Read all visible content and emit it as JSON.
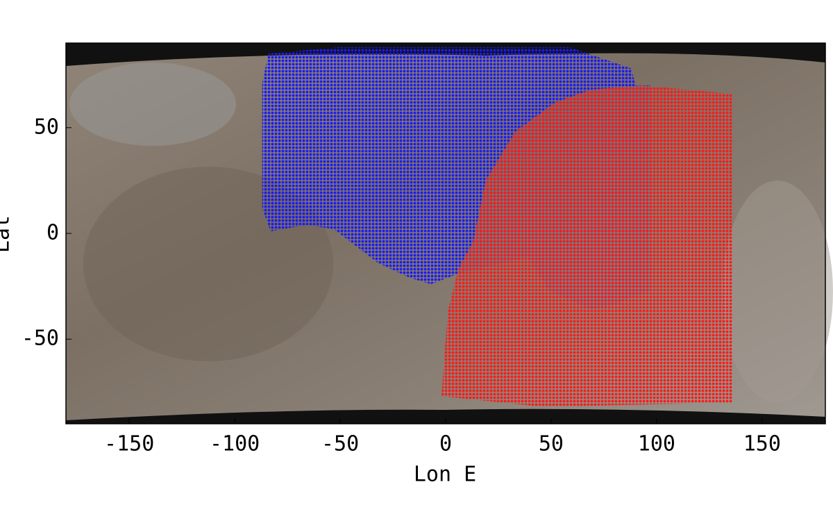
{
  "chart_data": {
    "type": "region",
    "xlabel": "Lon E",
    "ylabel": "Lat",
    "xlim": [
      -180,
      180
    ],
    "ylim": [
      -90,
      90
    ],
    "xticks": [
      -150,
      -100,
      -50,
      0,
      50,
      100,
      150
    ],
    "yticks": [
      -50,
      0,
      50
    ],
    "series": [
      {
        "color": "#1a1aff",
        "x": [
          -84,
          -51,
          59,
          88,
          90,
          97,
          97,
          78,
          69,
          49,
          39,
          6,
          -7,
          -17,
          -32,
          -53,
          -66,
          -83,
          -87,
          -87
        ],
        "values": [
          85,
          88,
          88,
          78,
          70,
          70,
          -27,
          -34,
          -36,
          -27,
          -11,
          -19,
          -24,
          -21,
          -14,
          2,
          4,
          1,
          12,
          71
        ]
      },
      {
        "color": "#ff1a1a",
        "x": [
          93,
          136,
          136,
          46,
          -2,
          1,
          6,
          13,
          19,
          33,
          52,
          69
        ],
        "values": [
          70,
          66,
          -80,
          -82,
          -77,
          -37,
          -17,
          -4,
          25,
          48,
          62,
          68
        ]
      }
    ]
  }
}
